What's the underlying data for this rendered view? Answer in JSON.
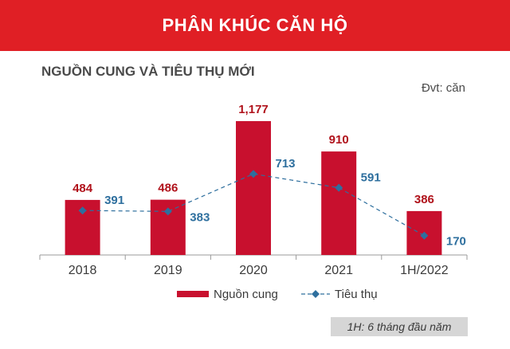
{
  "header": {
    "banner_title": "PHÂN KHÚC CĂN HỘ"
  },
  "subtitle": "NGUỒN CUNG VÀ TIÊU THỤ MỚI",
  "unit_label": "Đvt: căn",
  "footnote": "1H: 6 tháng đầu năm",
  "colors": {
    "bar": "#c8102e",
    "line": "#2e6f9e",
    "value_bar_label": "#b0121b",
    "value_line_label": "#2e6f9e",
    "banner": "#e01f25"
  },
  "chart_data": {
    "type": "bar",
    "title": "NGUỒN CUNG VÀ TIÊU THỤ MỚI",
    "categories": [
      "2018",
      "2019",
      "2020",
      "2021",
      "1H/2022"
    ],
    "series": [
      {
        "name": "Nguồn cung",
        "kind": "bar",
        "values": [
          484,
          486,
          1177,
          910,
          386
        ],
        "labels": [
          "484",
          "486",
          "1,177",
          "910",
          "386"
        ]
      },
      {
        "name": "Tiêu thụ",
        "kind": "line",
        "style": "dashed",
        "marker": "diamond",
        "values": [
          391,
          383,
          713,
          591,
          170
        ],
        "labels": [
          "391",
          "383",
          "713",
          "591",
          "170"
        ]
      }
    ],
    "ylim": [
      0,
      1300
    ],
    "grid": false,
    "legend": "bottom"
  }
}
